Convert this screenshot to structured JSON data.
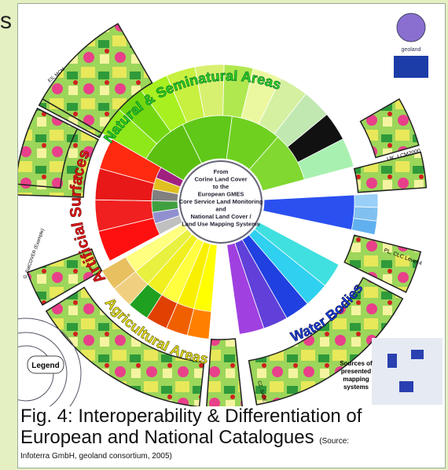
{
  "header_fragment": "s",
  "diagram": {
    "center_text": [
      "From",
      "Corine Land Cover",
      "to the",
      "European GMES",
      "Core Service Land Monitoring",
      "and",
      "National Land Cover /",
      "Land Use Mapping Systems"
    ],
    "sections": [
      {
        "title": "Natural & Seminatural Areas"
      },
      {
        "title": "Artificial Surfaces"
      },
      {
        "title": "Agricultural Areas"
      },
      {
        "title": "Water Bodies"
      }
    ],
    "map_labels": [
      "ES, MCM",
      "UK, LCM2000",
      "PL, CLC Level 4",
      "CZ, SADE",
      "G, SatCOVER (Example)"
    ],
    "logo": "geoland",
    "legend": "Legend",
    "sources_note": [
      "Sources of",
      "presented",
      "mapping",
      "systems"
    ]
  },
  "caption": {
    "line1": "Fig. 4: Interoperability & Differentiation of",
    "line2": "European and National Catalogues",
    "source_start": "(Source:",
    "source_end": "Infoterra GmbH, geoland consortium, 2005)"
  }
}
